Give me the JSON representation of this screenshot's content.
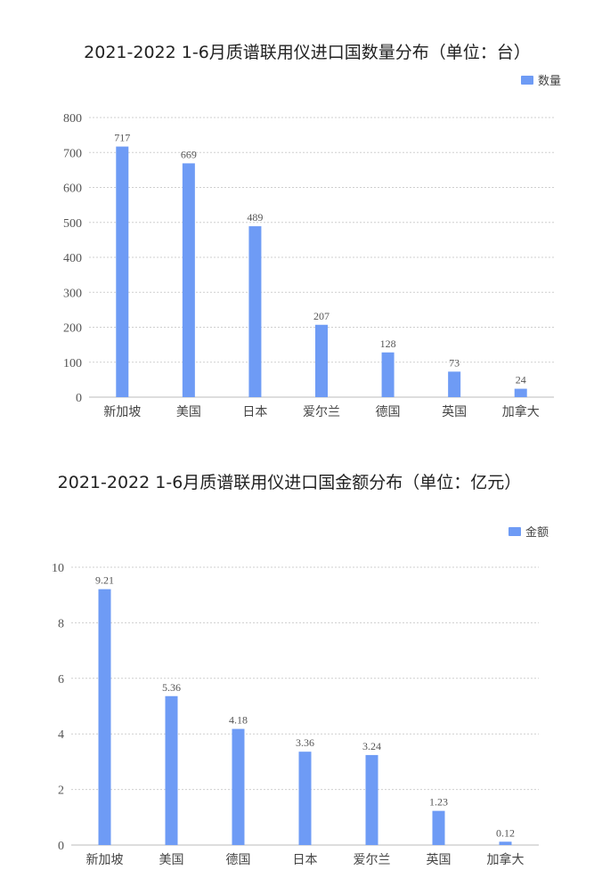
{
  "chart_data": [
    {
      "type": "bar",
      "title": "2021-2022 1-6月质谱联用仪进口国数量分布（单位：台）",
      "categories": [
        "新加坡",
        "美国",
        "日本",
        "爱尔兰",
        "德国",
        "英国",
        "加拿大"
      ],
      "series": [
        {
          "name": "数量",
          "values": [
            717,
            669,
            489,
            207,
            128,
            73,
            24
          ]
        }
      ],
      "data_labels": [
        "717",
        "669",
        "489",
        "207",
        "128",
        "73",
        "24"
      ],
      "ylim": [
        0,
        800
      ],
      "yticks": [
        "0",
        "100",
        "200",
        "300",
        "400",
        "500",
        "600",
        "700",
        "800"
      ],
      "ytick_values": [
        0,
        100,
        200,
        300,
        400,
        500,
        600,
        700,
        800
      ],
      "grid": true,
      "legend": "top-right",
      "color": "#6e9bf5"
    },
    {
      "type": "bar",
      "title": "2021-2022 1-6月质谱联用仪进口国金额分布（单位：亿元）",
      "categories": [
        "新加坡",
        "美国",
        "德国",
        "日本",
        "爱尔兰",
        "英国",
        "加拿大"
      ],
      "series": [
        {
          "name": "金额",
          "values": [
            9.21,
            5.36,
            4.18,
            3.36,
            3.24,
            1.23,
            0.12
          ]
        }
      ],
      "data_labels": [
        "9.21",
        "5.36",
        "4.18",
        "3.36",
        "3.24",
        "1.23",
        "0.12"
      ],
      "ylim": [
        0,
        10
      ],
      "yticks": [
        "0",
        "2",
        "4",
        "6",
        "8",
        "10"
      ],
      "ytick_values": [
        0,
        2,
        4,
        6,
        8,
        10
      ],
      "grid": true,
      "legend": "top-right",
      "color": "#6e9bf5"
    }
  ]
}
